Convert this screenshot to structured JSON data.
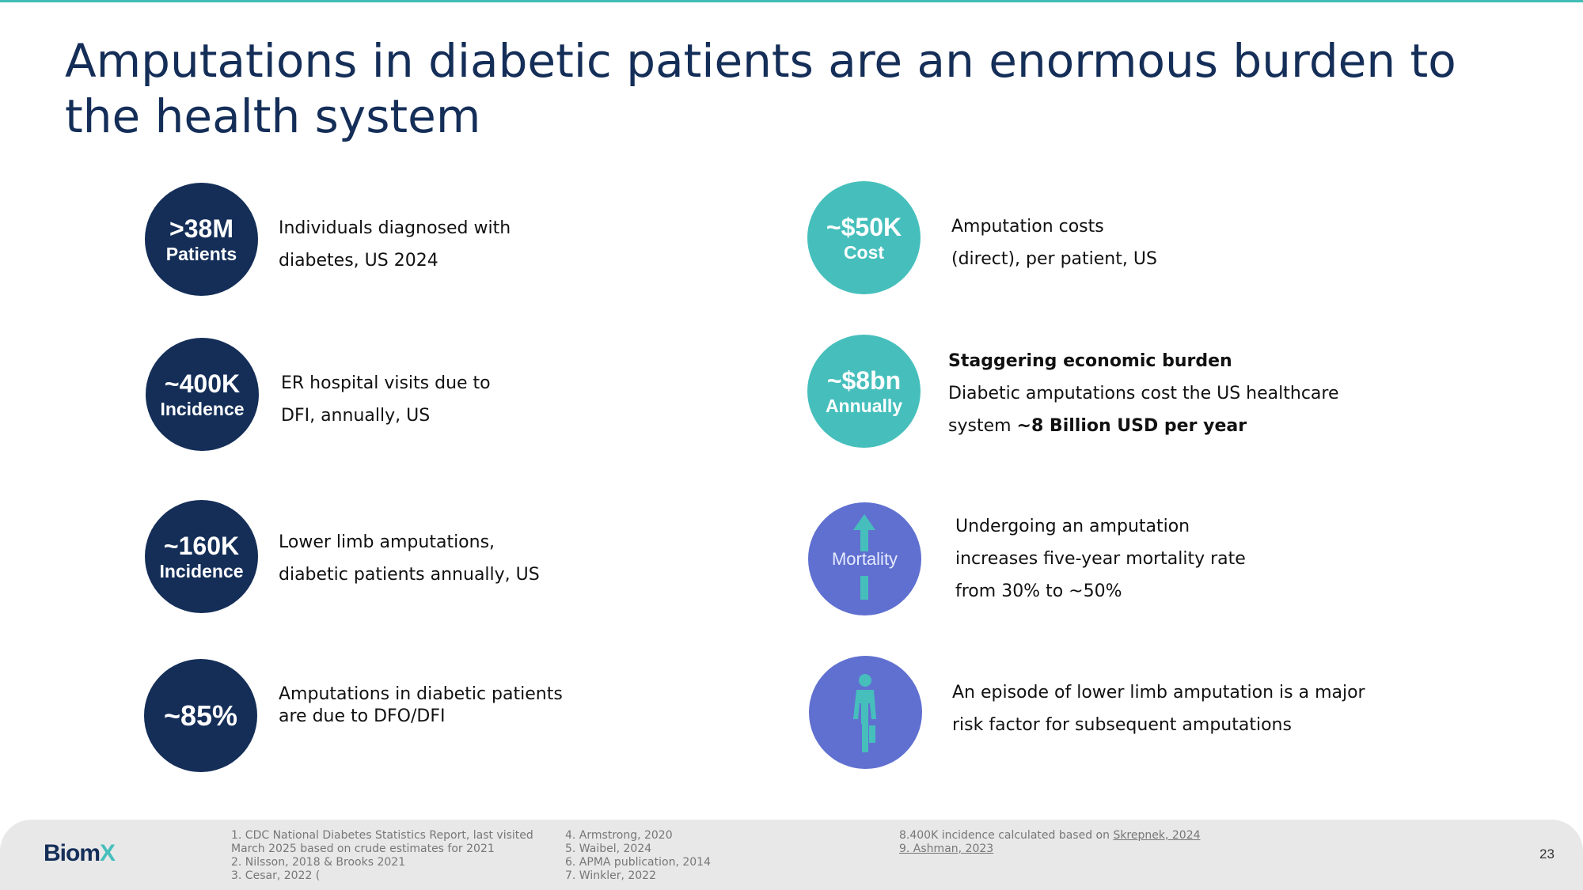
{
  "title": {
    "line1": "Amputations in diabetic patients are an enormous burden to",
    "line2": "the health system"
  },
  "left_stats": [
    {
      "big": ">38M",
      "small": "Patients",
      "desc_lines": [
        "Individuals diagnosed with",
        "diabetes, US 2024"
      ]
    },
    {
      "big": "~400K",
      "small": "Incidence",
      "desc_lines": [
        "ER hospital visits due to",
        "DFI, annually, US"
      ]
    },
    {
      "big": "~160K",
      "small": "Incidence",
      "desc_lines": [
        "Lower limb amputations,",
        "diabetic patients annually, US"
      ]
    },
    {
      "big": "~85%",
      "small": "",
      "desc_lines": [
        "Amputations in diabetic patients",
        "are due to DFO/DFI"
      ]
    }
  ],
  "right_stats": [
    {
      "big": "~$50K",
      "small": "Cost",
      "desc_lines": [
        "Amputation costs",
        "(direct), per patient, US"
      ]
    },
    {
      "big": "~$8bn",
      "small": "Annually",
      "heading": "Staggering economic burden",
      "desc_line1": "Diabetic amputations cost the US healthcare",
      "desc_line2_prefix": "system ",
      "desc_line2_bold": "~8 Billion USD per year"
    },
    {
      "label": "Mortality",
      "icon": "mortality-arrow-icon",
      "desc_lines": [
        "Undergoing an amputation",
        "increases five-year mortality rate",
        "from 30% to ~50%"
      ]
    },
    {
      "icon": "amputee-person-icon",
      "desc_lines": [
        "An episode of lower limb amputation is a major",
        "risk factor for subsequent amputations"
      ]
    }
  ],
  "footer": {
    "logo_main": "Biom",
    "logo_accent": "X",
    "refs_col1": [
      "1. CDC National Diabetes Statistics Report,  last visited",
      "March 2025 based on crude estimates for 2021",
      "2. Nilsson, 2018 & Brooks 2021",
      "3. Cesar, 2022 ("
    ],
    "refs_col2": [
      "4. Armstrong, 2020",
      "5. Waibel, 2024",
      "6. APMA publication, 2014",
      "7. Winkler, 2022"
    ],
    "refs_col3_prefix": "8.400K incidence calculated based on ",
    "refs_col3_link": "Skrepnek, 2024",
    "refs_col3_line2": "9. Ashman, 2023",
    "page_number": "23"
  },
  "colors": {
    "navy": "#142e58",
    "teal": "#46bfbc",
    "purple": "#6070d0",
    "topbar": "#3fbdb6"
  }
}
